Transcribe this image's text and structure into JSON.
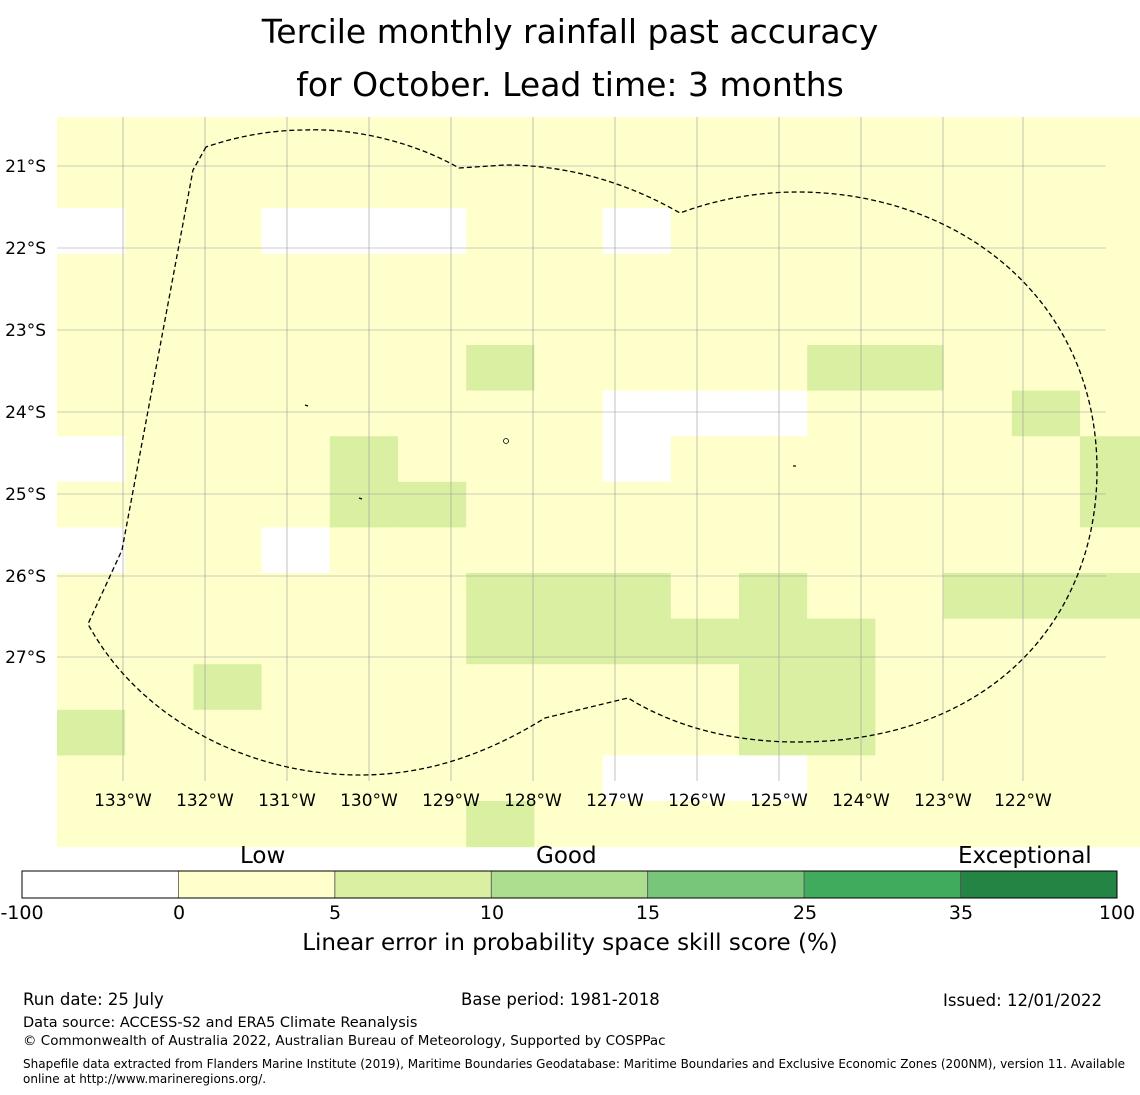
{
  "title_line1": "Tercile monthly rainfall past accuracy",
  "title_line2": "for October. Lead time: 3 months",
  "map": {
    "lat_labels": [
      "21°S",
      "22°S",
      "23°S",
      "24°S",
      "25°S",
      "26°S",
      "27°S"
    ],
    "lon_labels": [
      "133°W",
      "132°W",
      "131°W",
      "130°W",
      "129°W",
      "128°W",
      "127°W",
      "126°W",
      "125°W",
      "124°W",
      "123°W",
      "122°W"
    ],
    "colors": {
      "w": "#ffffff",
      "y": "#ffffcc",
      "g1": "#d9f0a3",
      "g2": "#addd8e",
      "g3": "#78c679",
      "g4": "#41ab5d",
      "g5": "#238443"
    },
    "grid": [
      "yyyyyyyyyyyyyyyyyyyyyyyw",
      "yyyyyyyyyyyyyyyyyyyyyyyw",
      "wyywwwyywyyyyyyyyyyyyg1g1",
      "yyyyyyyyyyyyyyyyyyyyyywg1",
      "yyyyyyyyyyyyyyyyg1yyyyyyyy",
      "yyyyyyg1yyyyg1g1yyyg1g1yyyy",
      "yyyyyyyywwwyyyg1yg1g1yyyy",
      "wyyyg1yyywyyyyyyg1g2g1yyg1",
      "yyyyg1g1yyyyyyyyyg1g1g1g1g1g1",
      "wyywyyyyyyyyyyyyyyyg1g1g1g1",
      "yyyyyyg1g1g1yg1yyg1g1g1g1yyyyg1",
      "yyyyyyg1g1g1g1g1g1yyyyyyyyyyy",
      "yyg1yyyyyyyg1g1yyyyywwwyyyy",
      "g1yyyyyyyyyg1g1yyyyyywwwyyy",
      "yyyyyyyywwwyyyyyyywwwwwyy",
      "yyyyyyg1yyyyyyyyyyyyyyyyy"
    ],
    "eez_boundary": "Dashed boundary line"
  },
  "colorbar": {
    "category_labels": [
      "Low",
      "Good",
      "Exceptional"
    ],
    "bins": [
      {
        "from": -100,
        "to": 0,
        "color": "#ffffff"
      },
      {
        "from": 0,
        "to": 5,
        "color": "#ffffcc"
      },
      {
        "from": 5,
        "to": 10,
        "color": "#d9f0a3"
      },
      {
        "from": 10,
        "to": 15,
        "color": "#addd8e"
      },
      {
        "from": 15,
        "to": 25,
        "color": "#78c679"
      },
      {
        "from": 25,
        "to": 35,
        "color": "#41ab5d"
      },
      {
        "from": 35,
        "to": 100,
        "color": "#238443"
      }
    ],
    "tick_labels": [
      "-100",
      "0",
      "5",
      "10",
      "15",
      "25",
      "35",
      "100"
    ],
    "title": "Linear error in probability space skill score (%)"
  },
  "footer": {
    "run_date": "Run date: 25 July",
    "base_period": "Base period: 1981-2018",
    "issued": "Issued: 12/01/2022",
    "data_source": "Data source: ACCESS-S2 and ERA5 Climate Reanalysis",
    "copyright": "© Commonwealth of Australia 2022, Australian Bureau of Meteorology, Supported by COSPPac",
    "shapefile": "Shapefile data extracted from Flanders Marine Institute (2019), Maritime Boundaries Geodatabase: Maritime Boundaries and Exclusive Economic Zones (200NM), version 11. Available online at http://www.marineregions.org/."
  }
}
